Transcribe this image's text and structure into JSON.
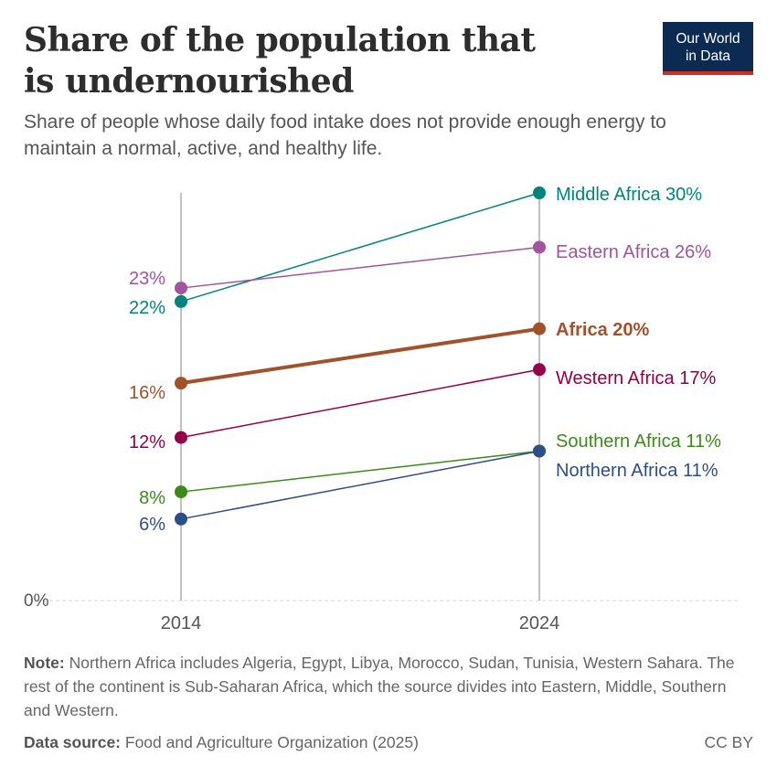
{
  "header": {
    "title": "Share of the population that is undernourished",
    "subtitle": "Share of people whose daily food intake does not provide enough energy to maintain a normal, active, and healthy life.",
    "logo_line1": "Our World",
    "logo_line2": "in Data"
  },
  "chart_data": {
    "type": "line",
    "x": [
      "2014",
      "2024"
    ],
    "ylim": [
      0,
      30
    ],
    "y_ticks": [
      {
        "value": 0,
        "label": "0%"
      }
    ],
    "grid": false,
    "series": [
      {
        "name": "Middle Africa",
        "values": [
          22,
          30
        ],
        "color": "#00847e",
        "start_label": "22%",
        "end_label": "Middle Africa 30%",
        "bold": false
      },
      {
        "name": "Eastern Africa",
        "values": [
          23,
          26
        ],
        "color": "#a2559c",
        "start_label": "23%",
        "end_label": "Eastern Africa 26%",
        "bold": false
      },
      {
        "name": "Africa",
        "values": [
          16,
          20
        ],
        "color": "#a2522b",
        "start_label": "16%",
        "end_label": "Africa 20%",
        "bold": true
      },
      {
        "name": "Western Africa",
        "values": [
          12,
          17
        ],
        "color": "#970046",
        "start_label": "12%",
        "end_label": "Western Africa 17%",
        "bold": false
      },
      {
        "name": "Southern Africa",
        "values": [
          8,
          11
        ],
        "color": "#3c8b17",
        "start_label": "8%",
        "end_label": "Southern Africa 11%",
        "bold": false
      },
      {
        "name": "Northern Africa",
        "values": [
          6,
          11
        ],
        "color": "#2c4f8a",
        "start_label": "6%",
        "end_label": "Northern Africa 11%",
        "bold": false
      }
    ]
  },
  "footer": {
    "note_label": "Note:",
    "note_text": " Northern Africa includes Algeria, Egypt, Libya, Morocco, Sudan, Tunisia, Western Sahara. The rest of the continent is Sub-Saharan Africa, which the source divides into Eastern, Middle, Southern and Western.",
    "source_label": "Data source:",
    "source_text": " Food and Agriculture Organization (2025)",
    "license": "CC BY"
  }
}
